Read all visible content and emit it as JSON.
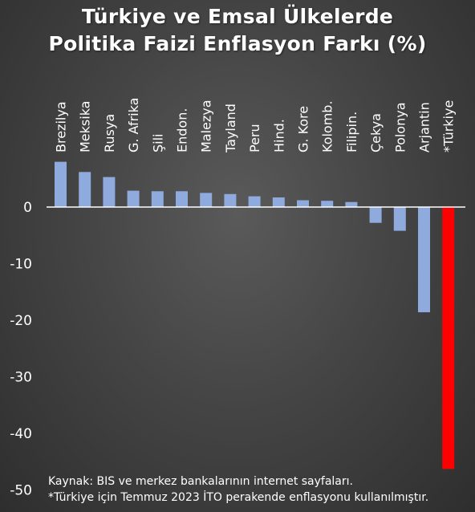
{
  "title_lines": [
    "Türkiye ve Emsal Ülkelerde",
    "Politika Faizi Enflasyon Farkı (%)"
  ],
  "footnotes": [
    "Kaynak: BIS ve merkez bankalarının internet sayfaları.",
    "*Türkiye için Temmuz 2023 İTO perakende enflasyonu kullanılmıştır."
  ],
  "colors": {
    "bar": "#8faadc",
    "highlight_bar": "#ff0000",
    "zero_line": "#ffffff",
    "text": "#ffffff",
    "background": "#454545"
  },
  "chart_data": {
    "type": "bar",
    "categories": [
      "Brezilya",
      "Meksika",
      "Rusya",
      "G. Afrika",
      "Şili",
      "Endon.",
      "Malezya",
      "Tayland",
      "Peru",
      "Hind.",
      "G. Kore",
      "Kolomb.",
      "Filipin.",
      "Çekya",
      "Polonya",
      "Arjantin",
      "*Türkiye"
    ],
    "values": [
      8.0,
      6.2,
      5.3,
      2.9,
      2.8,
      2.8,
      2.5,
      2.3,
      1.9,
      1.7,
      1.2,
      1.1,
      0.9,
      -2.8,
      -4.2,
      -18.6,
      -46.3
    ],
    "highlight": [
      "*Türkiye"
    ],
    "ylim": [
      -50,
      8
    ],
    "yticks": [
      0,
      -10,
      -20,
      -30,
      -40,
      -50
    ],
    "xlabel": "",
    "ylabel": "",
    "category_labels_position": "top, rotated vertical",
    "grid": false,
    "legend": "none"
  }
}
